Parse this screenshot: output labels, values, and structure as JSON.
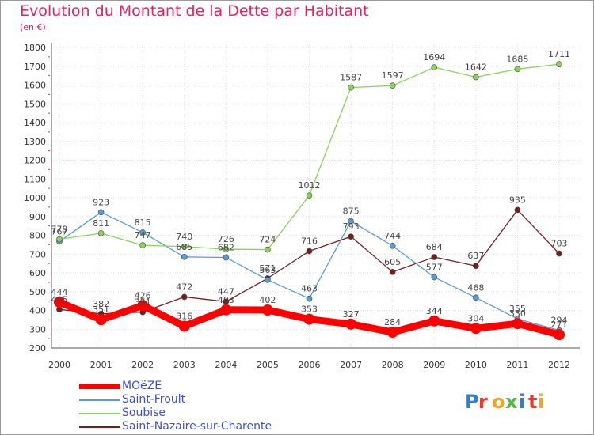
{
  "chart_data": {
    "type": "line",
    "title": "Evolution du Montant de la Dette par Habitant",
    "subtitle": "(en €)",
    "xlabel": "",
    "ylabel": "",
    "categories": [
      "2000",
      "2001",
      "2002",
      "2003",
      "2004",
      "2005",
      "2006",
      "2007",
      "2008",
      "2009",
      "2010",
      "2011",
      "2012"
    ],
    "ylim": [
      200,
      1800
    ],
    "yticks": [
      200,
      300,
      400,
      500,
      600,
      700,
      800,
      900,
      1000,
      1100,
      1200,
      1300,
      1400,
      1500,
      1600,
      1700,
      1800
    ],
    "grid": true,
    "legend_position": "bottom-left",
    "series": [
      {
        "name": "MOëZE",
        "color": "#ff0000",
        "values": [
          444,
          351,
          426,
          316,
          403,
          402,
          353,
          327,
          284,
          344,
          304,
          330,
          271
        ]
      },
      {
        "name": "Saint-Froult",
        "color": "#5b9bd5",
        "values": [
          767,
          923,
          815,
          685,
          682,
          563,
          463,
          875,
          744,
          577,
          468,
          355,
          294
        ]
      },
      {
        "name": "Soubise",
        "color": "#8ad35a",
        "values": [
          779,
          811,
          747,
          740,
          726,
          724,
          1012,
          1587,
          1597,
          1694,
          1642,
          1685,
          1711
        ]
      },
      {
        "name": "Saint-Nazaire-sur-Charente",
        "color": "#7b1c1c",
        "values": [
          405,
          382,
          391,
          472,
          447,
          571,
          716,
          793,
          605,
          684,
          637,
          935,
          703
        ]
      }
    ]
  },
  "legend": {
    "items": [
      "MOëZE",
      "Saint-Froult",
      "Soubise",
      "Saint-Nazaire-sur-Charente"
    ]
  },
  "logo": {
    "text": "Proxiti",
    "colors": [
      "#2d7fd0",
      "#e83a2a",
      "#f2a51e",
      "#59b846"
    ]
  }
}
